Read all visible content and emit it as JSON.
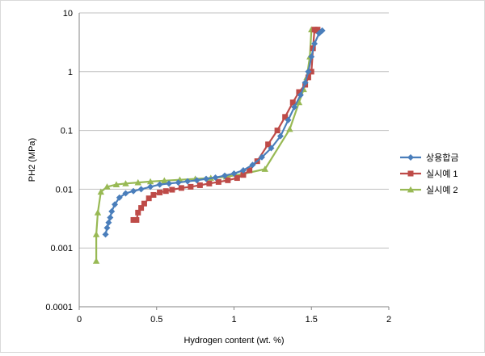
{
  "chart_data": {
    "type": "line",
    "title": "",
    "xlabel": "Hydrogen content (wt. %)",
    "ylabel": "PH2 (MPa)",
    "xlim": [
      0,
      2
    ],
    "ylim": [
      0.0001,
      10
    ],
    "y_scale": "log",
    "grid": "horizontal major",
    "legend_position": "right",
    "x_ticks": [
      "0",
      "0.5",
      "1",
      "1.5",
      "2"
    ],
    "y_ticks": [
      "0.0001",
      "0.001",
      "0.01",
      "0.1",
      "1",
      "10"
    ],
    "series": [
      {
        "name": "상용합금",
        "color": "#4a7ebb",
        "marker": "diamond",
        "x": [
          0.17,
          0.18,
          0.19,
          0.2,
          0.21,
          0.23,
          0.26,
          0.3,
          0.35,
          0.4,
          0.46,
          0.52,
          0.58,
          0.64,
          0.7,
          0.76,
          0.82,
          0.88,
          0.94,
          1.0,
          1.06,
          1.12,
          1.18,
          1.24,
          1.3,
          1.35,
          1.39,
          1.43,
          1.46,
          1.48,
          1.5,
          1.52,
          1.55,
          1.57
        ],
        "y": [
          0.0017,
          0.0022,
          0.0027,
          0.0033,
          0.0042,
          0.0055,
          0.0072,
          0.0085,
          0.0093,
          0.01,
          0.011,
          0.012,
          0.0125,
          0.013,
          0.0136,
          0.0142,
          0.015,
          0.0158,
          0.017,
          0.0185,
          0.021,
          0.026,
          0.035,
          0.05,
          0.08,
          0.15,
          0.25,
          0.4,
          0.65,
          1.0,
          1.8,
          3.0,
          4.5,
          5.0
        ]
      },
      {
        "name": "실시예 1",
        "color": "#be4b48",
        "marker": "square",
        "x": [
          0.35,
          0.37,
          0.38,
          0.4,
          0.42,
          0.45,
          0.48,
          0.52,
          0.56,
          0.6,
          0.66,
          0.72,
          0.78,
          0.84,
          0.9,
          0.96,
          1.02,
          1.06,
          1.1,
          1.15,
          1.22,
          1.28,
          1.33,
          1.38,
          1.42,
          1.46,
          1.48,
          1.5,
          1.51,
          1.52,
          1.53,
          1.54
        ],
        "y": [
          0.003,
          0.003,
          0.004,
          0.0048,
          0.0057,
          0.007,
          0.008,
          0.0088,
          0.0093,
          0.0098,
          0.0105,
          0.011,
          0.0117,
          0.0125,
          0.0133,
          0.0142,
          0.0155,
          0.0175,
          0.021,
          0.03,
          0.058,
          0.1,
          0.17,
          0.3,
          0.45,
          0.6,
          0.8,
          1.0,
          2.5,
          5.2,
          5.0,
          5.2
        ]
      },
      {
        "name": "실시예 2",
        "color": "#98b954",
        "marker": "triangle",
        "x": [
          0.11,
          0.11,
          0.12,
          0.14,
          0.18,
          0.24,
          0.3,
          0.38,
          0.46,
          0.55,
          0.65,
          0.75,
          0.85,
          0.95,
          1.05,
          1.2,
          1.36,
          1.42,
          1.45,
          1.47,
          1.49,
          1.5
        ],
        "y": [
          0.0006,
          0.0017,
          0.004,
          0.009,
          0.011,
          0.012,
          0.0125,
          0.013,
          0.0135,
          0.014,
          0.0145,
          0.015,
          0.0155,
          0.0163,
          0.018,
          0.022,
          0.105,
          0.3,
          0.5,
          0.8,
          1.8,
          5.2
        ]
      }
    ]
  }
}
